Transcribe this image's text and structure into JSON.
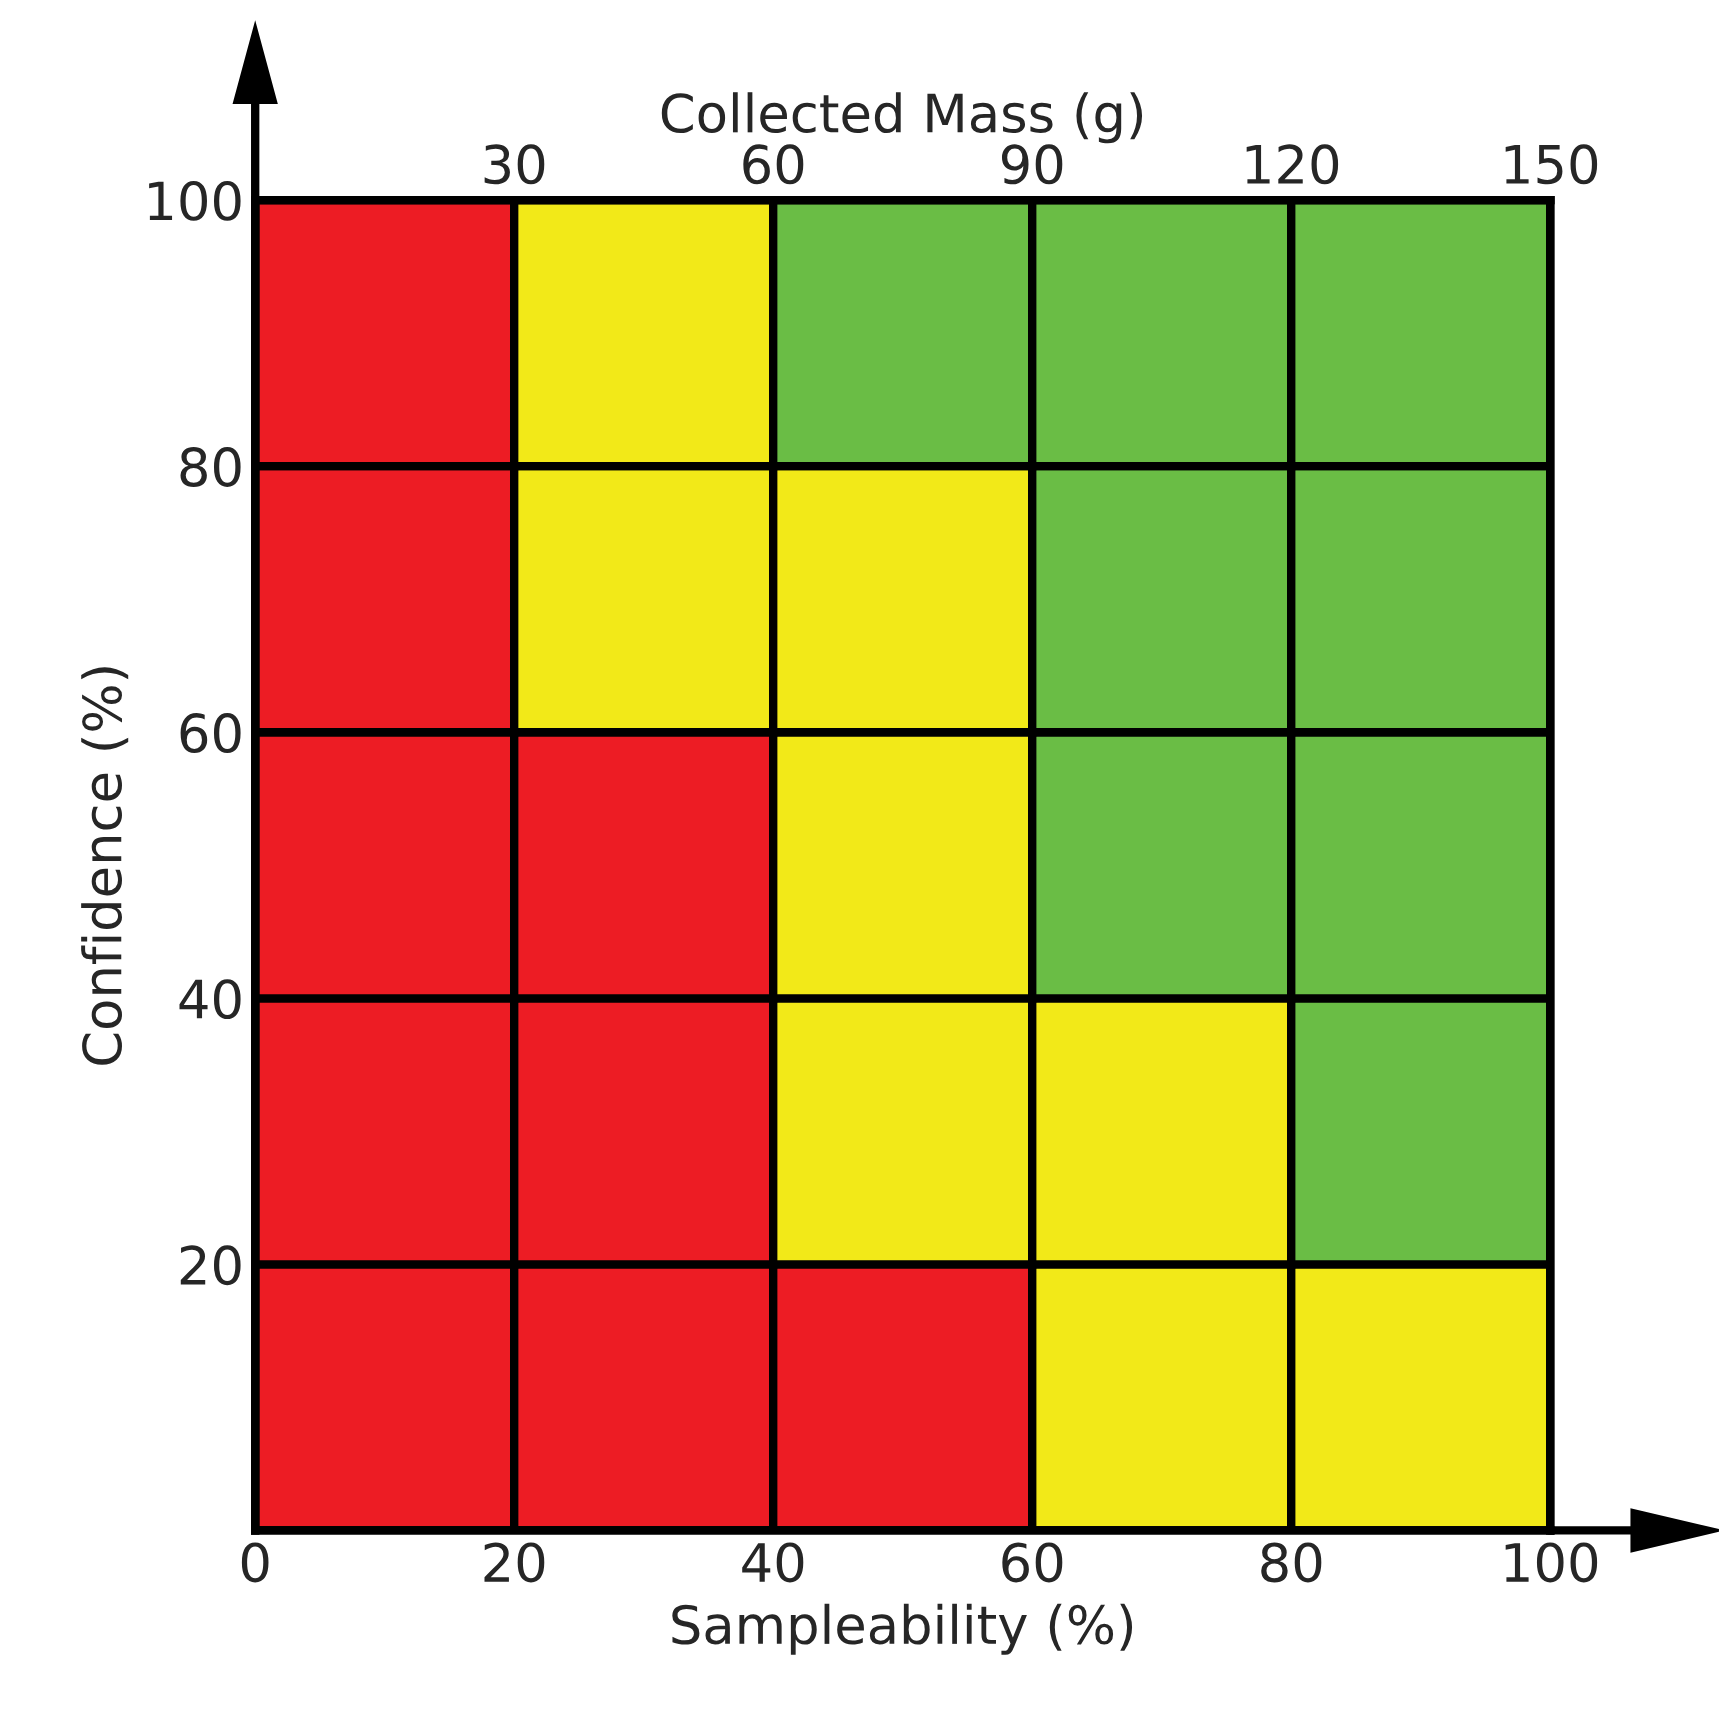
{
  "chart_data": {
    "type": "bar",
    "stacked": true,
    "x": [
      10,
      30,
      50,
      70,
      90
    ],
    "xlabel": "Sampleability (%)",
    "ylabel": "Confidence (%)",
    "x2label": "Collected Mass (g)",
    "xlim": [
      0,
      100
    ],
    "xticks": [
      0,
      20,
      40,
      60,
      80,
      100
    ],
    "ylim": [
      0,
      100
    ],
    "yticks": [
      20,
      40,
      60,
      80,
      100
    ],
    "x2lim": [
      0,
      150
    ],
    "x2ticks": [
      30,
      60,
      90,
      120,
      150
    ],
    "series": [
      {
        "values": [
          20,
          20,
          20,
          20,
          20
        ],
        "colors": [
          "#ed1c24",
          "#ed1c24",
          "#ed1c24",
          "#f2e918",
          "#f2e918"
        ]
      },
      {
        "values": [
          20,
          20,
          20,
          20,
          20
        ],
        "colors": [
          "#ed1c24",
          "#ed1c24",
          "#f2e918",
          "#f2e918",
          "#6abd45"
        ]
      },
      {
        "values": [
          20,
          20,
          20,
          20,
          20
        ],
        "colors": [
          "#ed1c24",
          "#ed1c24",
          "#f2e918",
          "#6abd45",
          "#6abd45"
        ]
      },
      {
        "values": [
          20,
          20,
          20,
          20,
          20
        ],
        "colors": [
          "#ed1c24",
          "#f2e918",
          "#f2e918",
          "#6abd45",
          "#6abd45"
        ]
      },
      {
        "values": [
          20,
          20,
          20,
          20,
          20
        ],
        "colors": [
          "#ed1c24",
          "#f2e918",
          "#6abd45",
          "#6abd45",
          "#6abd45"
        ]
      }
    ],
    "legend": false
  }
}
